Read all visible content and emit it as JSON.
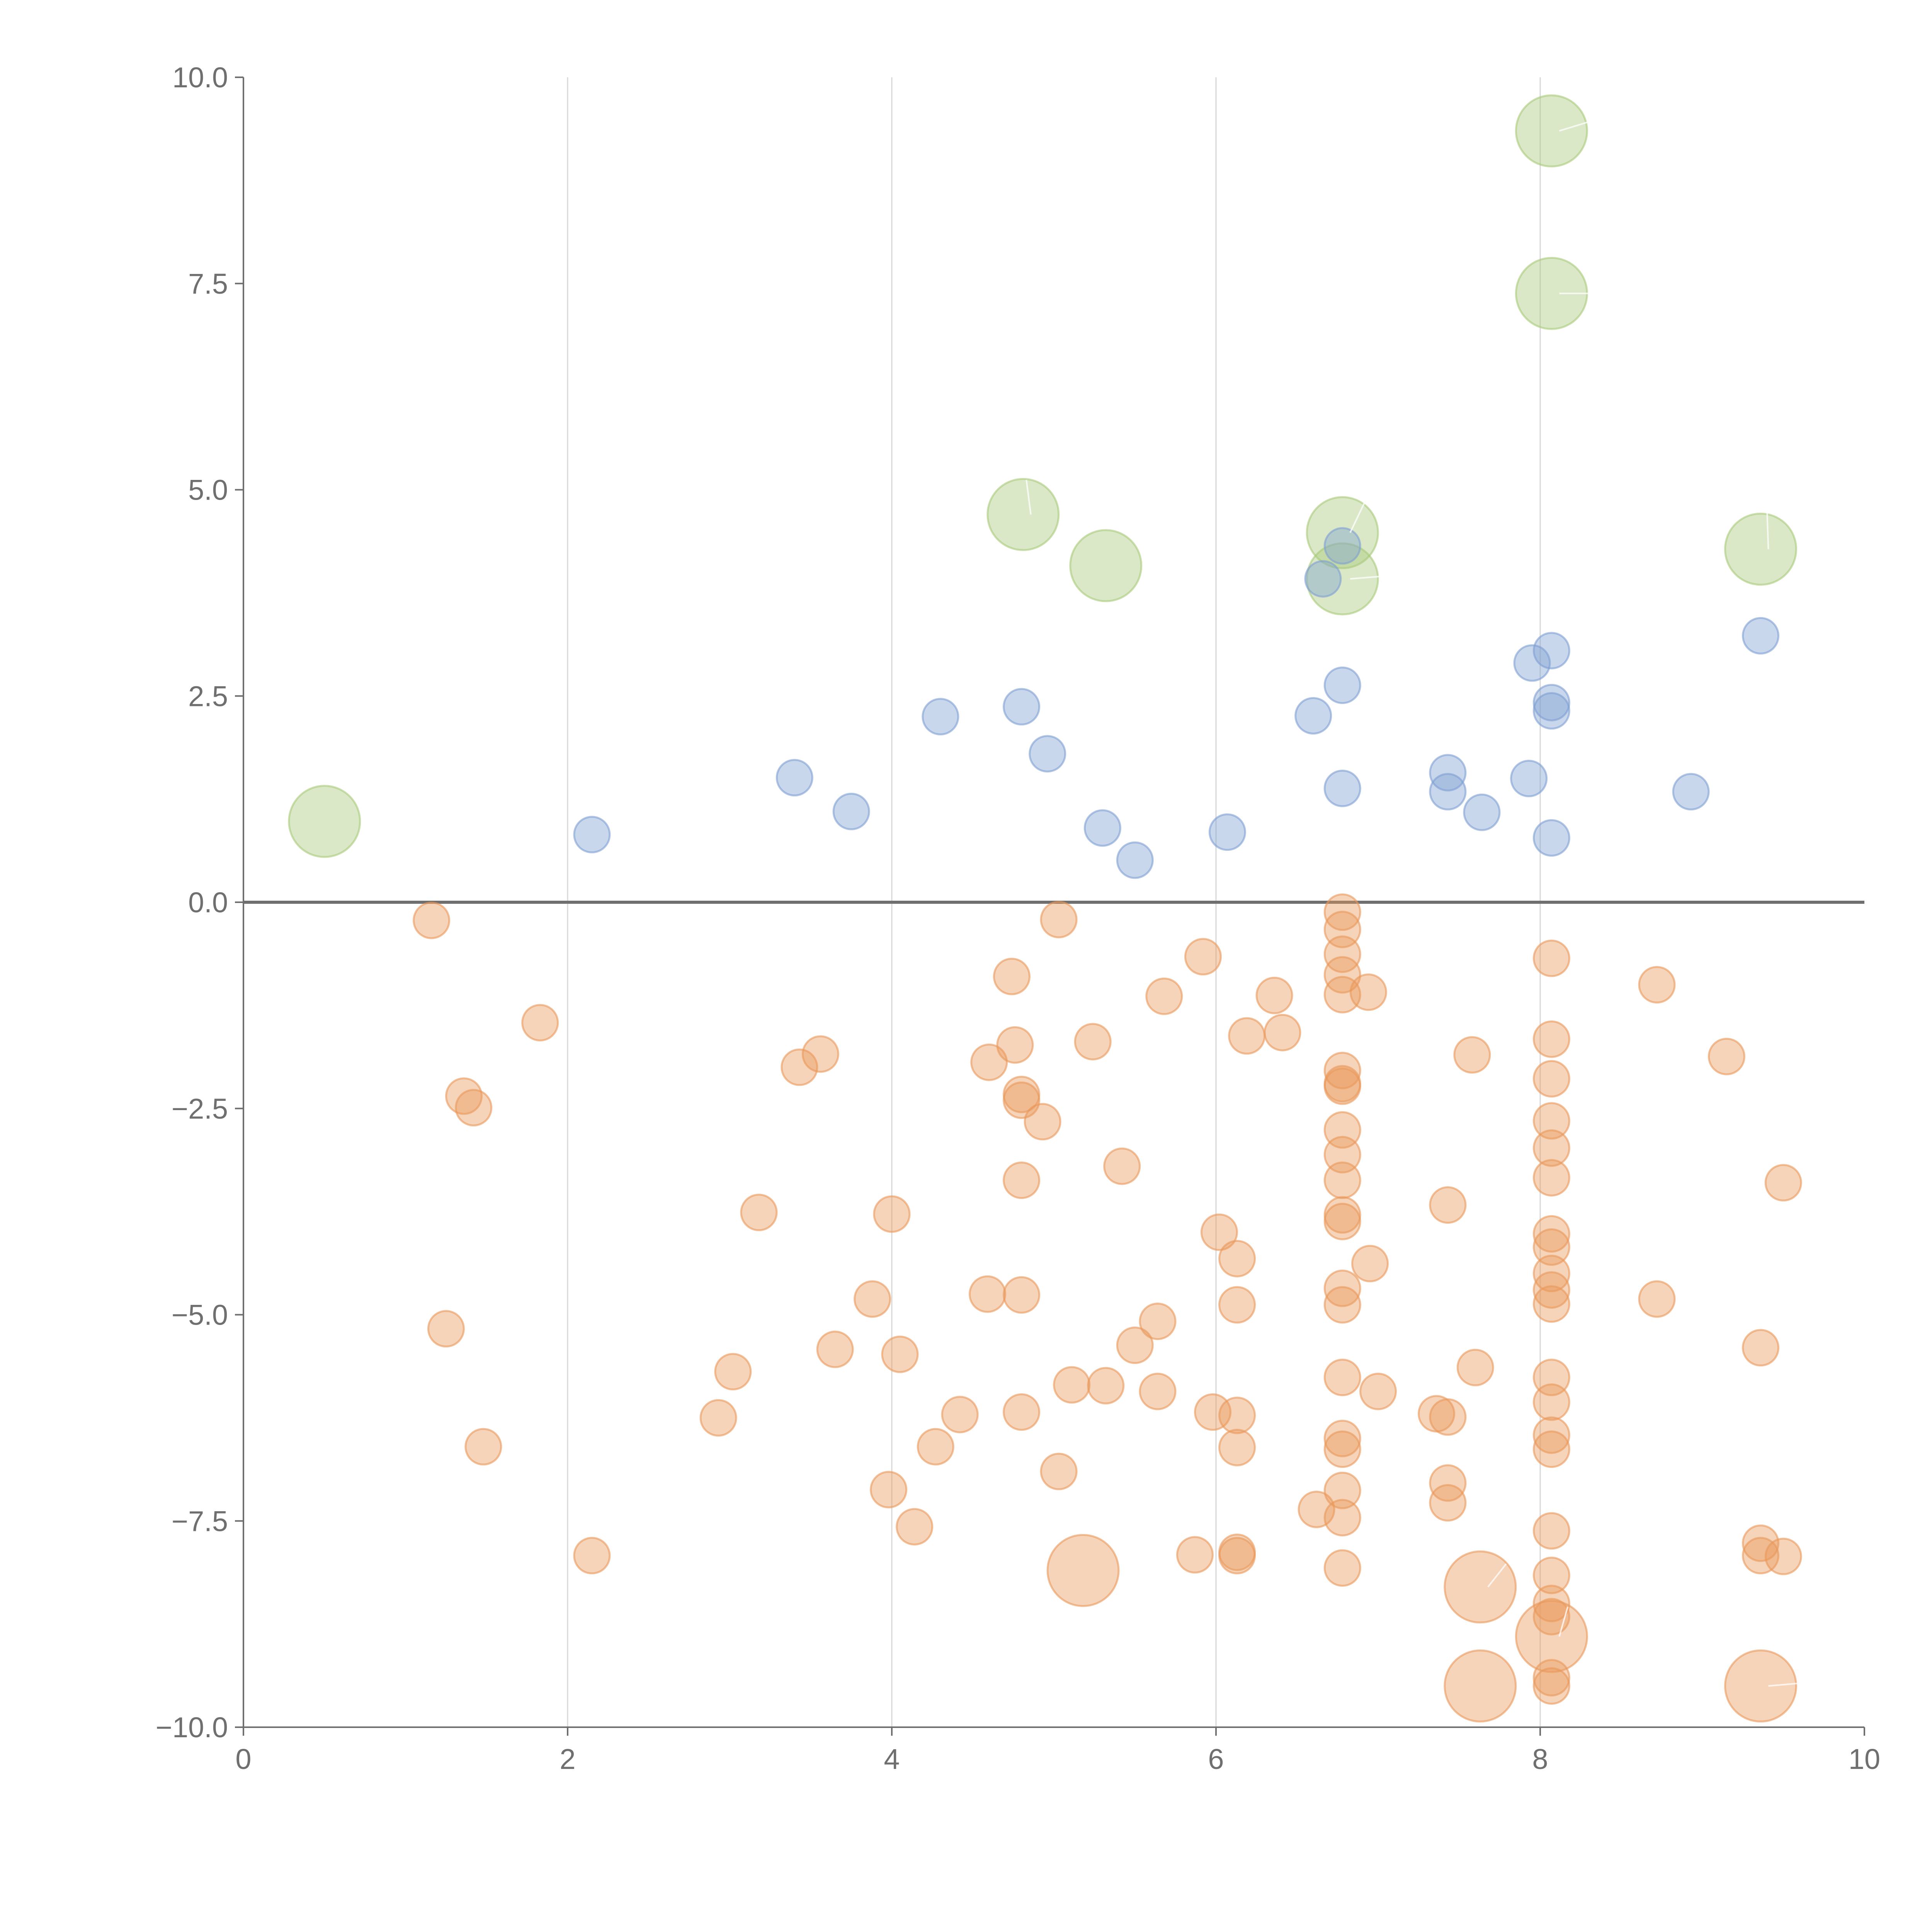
{
  "chart_data": {
    "type": "scatter",
    "title": "",
    "xlabel": "",
    "ylabel": "",
    "xlim": [
      0,
      10
    ],
    "ylim": [
      -10,
      10
    ],
    "x_ticks": [
      "0",
      "2",
      "4",
      "6",
      "8",
      "10"
    ],
    "y_ticks": [
      "10.0",
      "7.5",
      "5.0",
      "2.5",
      "0.0",
      "−2.5",
      "−5.0",
      "−7.5",
      "−10.0"
    ],
    "x_tick_values": [
      0,
      2,
      4,
      6,
      8,
      10
    ],
    "y_tick_values": [
      10,
      7.5,
      5,
      2.5,
      0,
      -2.5,
      -5,
      -7.5,
      -10
    ],
    "grid": {
      "vertical": true,
      "horizontal": false
    },
    "zero_line": true,
    "colors": {
      "green": "#a8c97a",
      "blue": "#7f9fd2",
      "orange": "#e9985a",
      "axis": "#6f6f6f",
      "grid": "#d7d7d7"
    },
    "series": [
      {
        "color": "green",
        "size": "large",
        "points": [
          [
            8.07,
            9.35
          ],
          [
            8.07,
            7.38
          ],
          [
            4.81,
            4.7
          ],
          [
            5.32,
            4.08
          ],
          [
            6.78,
            4.48
          ],
          [
            6.78,
            3.92
          ],
          [
            9.36,
            4.28
          ],
          [
            0.5,
            0.98
          ]
        ]
      },
      {
        "color": "blue",
        "size": "small",
        "points": [
          [
            6.78,
            4.32
          ],
          [
            6.66,
            3.92
          ],
          [
            8.07,
            3.05
          ],
          [
            7.95,
            2.9
          ],
          [
            9.36,
            3.23
          ],
          [
            6.78,
            2.63
          ],
          [
            8.07,
            2.42
          ],
          [
            8.07,
            2.32
          ],
          [
            4.3,
            2.25
          ],
          [
            4.8,
            2.37
          ],
          [
            6.6,
            2.26
          ],
          [
            4.96,
            1.8
          ],
          [
            3.4,
            1.51
          ],
          [
            7.43,
            1.57
          ],
          [
            7.43,
            1.34
          ],
          [
            7.93,
            1.5
          ],
          [
            6.78,
            1.38
          ],
          [
            3.75,
            1.1
          ],
          [
            7.64,
            1.09
          ],
          [
            8.93,
            1.34
          ],
          [
            2.15,
            0.82
          ],
          [
            5.3,
            0.9
          ],
          [
            6.07,
            0.85
          ],
          [
            8.07,
            0.78
          ],
          [
            5.5,
            0.51
          ]
        ]
      },
      {
        "color": "orange",
        "size": "small",
        "points": [
          [
            1.16,
            -0.22
          ],
          [
            5.03,
            -0.21
          ],
          [
            6.78,
            -0.12
          ],
          [
            6.78,
            -0.33
          ],
          [
            6.78,
            -0.63
          ],
          [
            5.92,
            -0.66
          ],
          [
            8.07,
            -0.68
          ],
          [
            6.78,
            -0.88
          ],
          [
            4.74,
            -0.9
          ],
          [
            8.72,
            -1.0
          ],
          [
            6.78,
            -1.12
          ],
          [
            6.94,
            -1.09
          ],
          [
            5.68,
            -1.14
          ],
          [
            6.36,
            -1.13
          ],
          [
            1.83,
            -1.46
          ],
          [
            6.19,
            -1.62
          ],
          [
            6.41,
            -1.58
          ],
          [
            5.24,
            -1.69
          ],
          [
            8.07,
            -1.66
          ],
          [
            4.76,
            -1.73
          ],
          [
            3.56,
            -1.84
          ],
          [
            7.58,
            -1.85
          ],
          [
            9.15,
            -1.87
          ],
          [
            3.43,
            -2.0
          ],
          [
            4.6,
            -1.94
          ],
          [
            6.78,
            -2.04
          ],
          [
            6.78,
            -2.2
          ],
          [
            6.78,
            -2.23
          ],
          [
            8.07,
            -2.14
          ],
          [
            1.36,
            -2.35
          ],
          [
            4.8,
            -2.33
          ],
          [
            4.8,
            -2.4
          ],
          [
            1.42,
            -2.49
          ],
          [
            4.93,
            -2.66
          ],
          [
            8.07,
            -2.65
          ],
          [
            6.78,
            -2.76
          ],
          [
            8.07,
            -2.98
          ],
          [
            6.78,
            -3.06
          ],
          [
            5.42,
            -3.2
          ],
          [
            4.8,
            -3.37
          ],
          [
            6.78,
            -3.37
          ],
          [
            8.07,
            -3.34
          ],
          [
            9.5,
            -3.4
          ],
          [
            3.18,
            -3.76
          ],
          [
            4.0,
            -3.78
          ],
          [
            7.43,
            -3.67
          ],
          [
            6.78,
            -3.79
          ],
          [
            6.78,
            -3.87
          ],
          [
            6.02,
            -4.0
          ],
          [
            8.07,
            -4.02
          ],
          [
            8.07,
            -4.18
          ],
          [
            6.13,
            -4.32
          ],
          [
            6.95,
            -4.38
          ],
          [
            8.07,
            -4.5
          ],
          [
            6.78,
            -4.68
          ],
          [
            8.07,
            -4.7
          ],
          [
            4.59,
            -4.75
          ],
          [
            4.8,
            -4.76
          ],
          [
            3.88,
            -4.81
          ],
          [
            6.13,
            -4.88
          ],
          [
            6.78,
            -4.88
          ],
          [
            8.07,
            -4.87
          ],
          [
            8.72,
            -4.81
          ],
          [
            1.25,
            -5.17
          ],
          [
            5.64,
            -5.08
          ],
          [
            3.65,
            -5.42
          ],
          [
            4.05,
            -5.48
          ],
          [
            5.5,
            -5.37
          ],
          [
            9.36,
            -5.4
          ],
          [
            3.02,
            -5.69
          ],
          [
            7.6,
            -5.64
          ],
          [
            5.11,
            -5.85
          ],
          [
            5.32,
            -5.86
          ],
          [
            6.78,
            -5.76
          ],
          [
            8.07,
            -5.76
          ],
          [
            5.64,
            -5.93
          ],
          [
            7.0,
            -5.93
          ],
          [
            8.07,
            -6.06
          ],
          [
            2.93,
            -6.25
          ],
          [
            4.42,
            -6.21
          ],
          [
            4.8,
            -6.18
          ],
          [
            5.98,
            -6.18
          ],
          [
            6.13,
            -6.22
          ],
          [
            7.36,
            -6.2
          ],
          [
            7.43,
            -6.24
          ],
          [
            6.78,
            -6.5
          ],
          [
            8.07,
            -6.46
          ],
          [
            1.48,
            -6.6
          ],
          [
            4.27,
            -6.6
          ],
          [
            6.13,
            -6.61
          ],
          [
            6.78,
            -6.63
          ],
          [
            8.07,
            -6.63
          ],
          [
            5.03,
            -6.9
          ],
          [
            3.98,
            -7.12
          ],
          [
            6.78,
            -7.13
          ],
          [
            7.43,
            -7.04
          ],
          [
            7.43,
            -7.28
          ],
          [
            6.62,
            -7.36
          ],
          [
            4.14,
            -7.57
          ],
          [
            6.78,
            -7.46
          ],
          [
            8.07,
            -7.62
          ],
          [
            9.36,
            -7.77
          ],
          [
            2.15,
            -7.92
          ],
          [
            5.87,
            -7.91
          ],
          [
            6.13,
            -7.88
          ],
          [
            6.13,
            -7.92
          ],
          [
            9.36,
            -7.92
          ],
          [
            9.5,
            -7.93
          ],
          [
            6.78,
            -8.07
          ],
          [
            8.07,
            -8.16
          ],
          [
            8.07,
            -8.5
          ],
          [
            8.07,
            -8.66
          ],
          [
            8.07,
            -9.4
          ],
          [
            8.07,
            -9.5
          ]
        ]
      },
      {
        "color": "orange",
        "size": "large",
        "points": [
          [
            5.18,
            -8.1
          ],
          [
            7.63,
            -8.3
          ],
          [
            8.07,
            -8.9
          ],
          [
            7.63,
            -9.5
          ],
          [
            9.36,
            -9.5
          ]
        ]
      }
    ],
    "leaders": [
      {
        "x": 8.07,
        "y": 9.35,
        "dx": 0.28,
        "dy": 0.14
      },
      {
        "x": 8.07,
        "y": 7.38,
        "dx": 0.28,
        "dy": 0.0
      },
      {
        "x": 4.81,
        "y": 4.7,
        "dx": 0.02,
        "dy": 0.42
      },
      {
        "x": 6.78,
        "y": 4.48,
        "dx": 0.14,
        "dy": 0.38
      },
      {
        "x": 6.78,
        "y": 3.92,
        "dx": 0.3,
        "dy": 0.04
      },
      {
        "x": 9.36,
        "y": 4.28,
        "dx": 0.04,
        "dy": 0.44
      },
      {
        "x": 7.63,
        "y": -8.3,
        "dx": 0.16,
        "dy": 0.28
      },
      {
        "x": 8.07,
        "y": -8.9,
        "dx": 0.1,
        "dy": 0.36
      },
      {
        "x": 9.36,
        "y": -9.5,
        "dx": 0.28,
        "dy": 0.04
      }
    ]
  }
}
